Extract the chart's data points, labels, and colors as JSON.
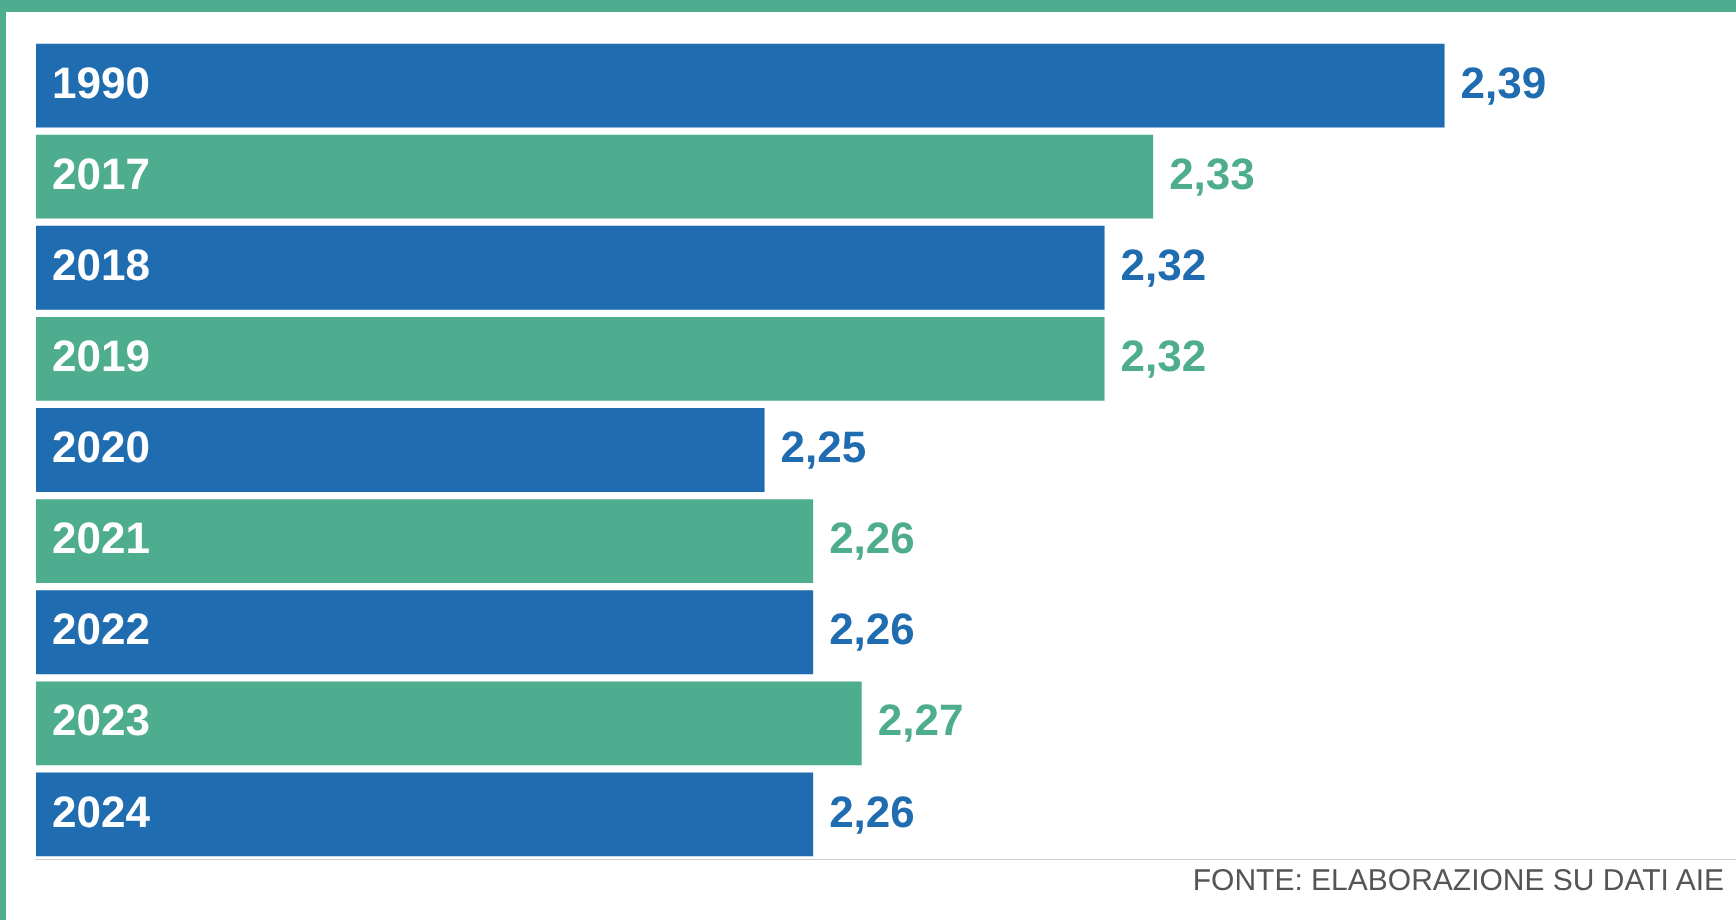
{
  "chart_data": {
    "type": "bar",
    "orientation": "horizontal",
    "categories": [
      "1990",
      "2017",
      "2018",
      "2019",
      "2020",
      "2021",
      "2022",
      "2023",
      "2024"
    ],
    "values": [
      2.39,
      2.33,
      2.32,
      2.32,
      2.25,
      2.26,
      2.26,
      2.27,
      2.26
    ],
    "colors": [
      "#1f6cb0",
      "#4eac8f",
      "#1f6cb0",
      "#4eac8f",
      "#1f6cb0",
      "#4eac8f",
      "#1f6cb0",
      "#4eac8f",
      "#1f6cb0"
    ],
    "value_labels": [
      "2,39",
      "2,33",
      "2,32",
      "2,32",
      "2,25",
      "2,26",
      "2,26",
      "2,27",
      "2,26"
    ],
    "xlim": [
      2.1,
      2.45
    ],
    "tick_labels": "y",
    "annotations": [
      "FONTE: ELABORAZIONE SU DATI AIE"
    ]
  }
}
